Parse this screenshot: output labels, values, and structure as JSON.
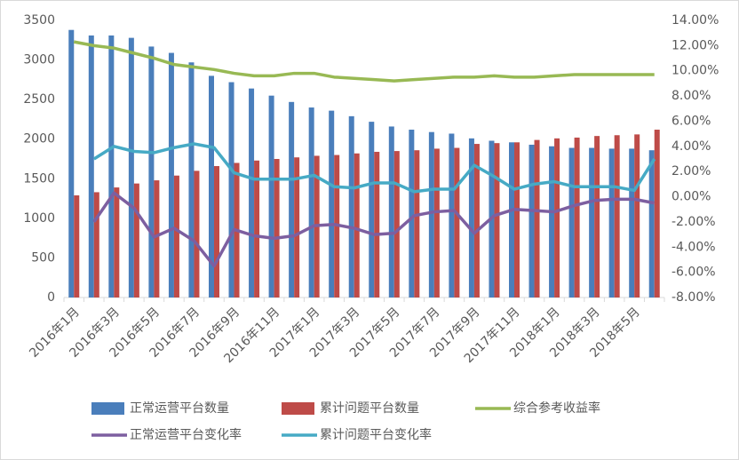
{
  "chart_data": {
    "type": "bar",
    "categories": [
      "2016年1月",
      null,
      "2016年3月",
      null,
      "2016年5月",
      null,
      "2016年7月",
      null,
      "2016年9月",
      null,
      "2016年11月",
      null,
      "2017年1月",
      null,
      "2017年3月",
      null,
      "2017年5月",
      null,
      "2017年7月",
      null,
      "2017年9月",
      null,
      "2017年11月",
      null,
      "2018年1月",
      null,
      "2018年3月",
      null,
      "2018年5月",
      null
    ],
    "series": [
      {
        "name": "正常运营平台数量",
        "type": "bar",
        "axis": "y",
        "color": "#4a7ebb",
        "values": [
          3380,
          3310,
          3310,
          3280,
          3170,
          3090,
          2970,
          2800,
          2720,
          2640,
          2550,
          2470,
          2400,
          2360,
          2290,
          2220,
          2160,
          2120,
          2090,
          2070,
          2010,
          1980,
          1960,
          1930,
          1910,
          1890,
          1890,
          1880,
          1880,
          1860
        ]
      },
      {
        "name": "累计问题平台数量",
        "type": "bar",
        "axis": "y",
        "color": "#be4b48",
        "values": [
          1290,
          1330,
          1390,
          1440,
          1480,
          1540,
          1600,
          1660,
          1700,
          1730,
          1750,
          1770,
          1790,
          1800,
          1820,
          1840,
          1850,
          1860,
          1880,
          1890,
          1940,
          1950,
          1960,
          1990,
          2010,
          2020,
          2040,
          2050,
          2060,
          2120
        ]
      },
      {
        "name": "综合参考收益率",
        "type": "line",
        "axis": "y2",
        "color": "#98b954",
        "values": [
          12.3,
          12.0,
          11.8,
          11.4,
          11.0,
          10.5,
          10.3,
          10.1,
          9.8,
          9.6,
          9.6,
          9.8,
          9.8,
          9.5,
          9.4,
          9.3,
          9.2,
          9.3,
          9.4,
          9.5,
          9.5,
          9.6,
          9.5,
          9.5,
          9.6,
          9.7,
          9.7,
          9.7,
          9.7,
          9.7
        ]
      },
      {
        "name": "正常运营平台变化率",
        "type": "line",
        "axis": "y2",
        "color": "#7d5fa0",
        "values": [
          null,
          -2.0,
          0.3,
          -0.9,
          -3.2,
          -2.5,
          -3.5,
          -5.5,
          -2.6,
          -3.1,
          -3.3,
          -3.1,
          -2.3,
          -2.2,
          -2.5,
          -3.0,
          -2.9,
          -1.5,
          -1.2,
          -1.1,
          -2.9,
          -1.5,
          -1.0,
          -1.1,
          -1.2,
          -0.7,
          -0.3,
          -0.2,
          -0.2,
          -0.5
        ]
      },
      {
        "name": "累计问题平台变化率",
        "type": "line",
        "axis": "y2",
        "color": "#46aac5",
        "values": [
          null,
          3.0,
          4.0,
          3.6,
          3.5,
          3.9,
          4.2,
          3.9,
          1.9,
          1.4,
          1.4,
          1.4,
          1.7,
          0.8,
          0.7,
          1.1,
          1.1,
          0.4,
          0.6,
          0.6,
          2.5,
          1.6,
          0.6,
          1.0,
          1.2,
          0.8,
          0.8,
          0.8,
          0.5,
          3.0
        ]
      }
    ],
    "ylim": [
      0,
      3500
    ],
    "yticks": [
      0,
      500,
      1000,
      1500,
      2000,
      2500,
      3000,
      3500
    ],
    "y2lim": [
      -8,
      14
    ],
    "y2ticks": [
      {
        "value": -8,
        "label": "-8.00%"
      },
      {
        "value": -6,
        "label": "-6.00%"
      },
      {
        "value": -4,
        "label": "-4.00%"
      },
      {
        "value": -2,
        "label": "-2.00%"
      },
      {
        "value": 0,
        "label": "0.00%"
      },
      {
        "value": 2,
        "label": "2.00%"
      },
      {
        "value": 4,
        "label": "4.00%"
      },
      {
        "value": 6,
        "label": "6.00%"
      },
      {
        "value": 8,
        "label": "8.00%"
      },
      {
        "value": 10,
        "label": "10.00%"
      },
      {
        "value": 12,
        "label": "12.00%"
      },
      {
        "value": 14,
        "label": "14.00%"
      }
    ],
    "grid": false,
    "legend": "bottom"
  }
}
